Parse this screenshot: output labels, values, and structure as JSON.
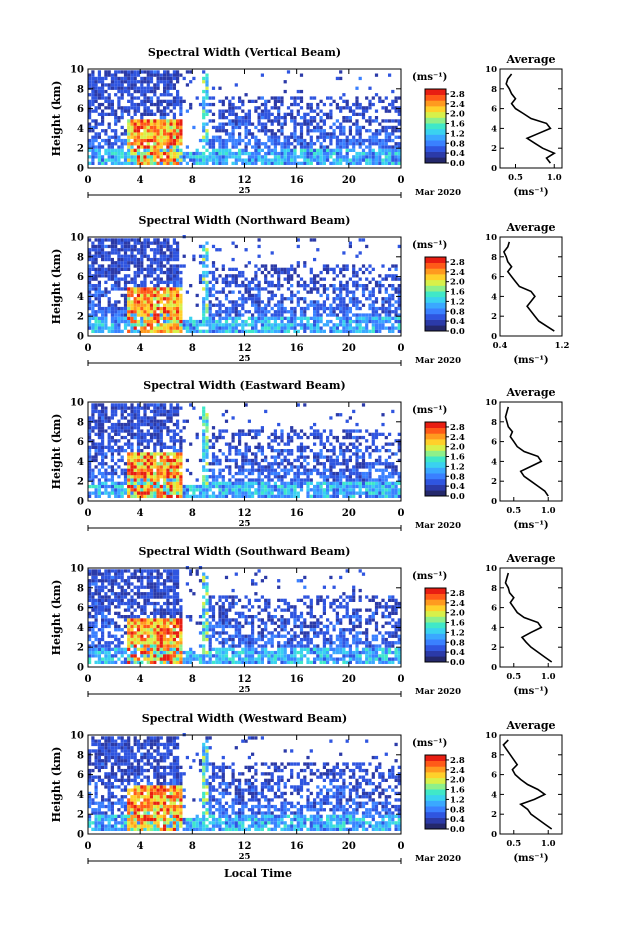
{
  "figure": {
    "x_title": "Local Time",
    "date_label": "Mar 2020",
    "day_label": "25",
    "unit_label": "(ms⁻¹)",
    "avg_title": "Average",
    "avg_xlabel": "(ms⁻¹)",
    "y_label": "Height (km)",
    "colorbar_ticks": [
      "0.0",
      "0.4",
      "0.8",
      "1.2",
      "1.6",
      "2.0",
      "2.4",
      "2.8"
    ],
    "colors": [
      "#24286b",
      "#2b3aa8",
      "#2f55e0",
      "#3a80ff",
      "#3aa8ff",
      "#3ad2f0",
      "#40e8c8",
      "#8ef08a",
      "#d8f04a",
      "#ffd02a",
      "#ff9a1f",
      "#ff5a18",
      "#e81e12"
    ]
  },
  "chart_data": [
    {
      "type": "heatmap",
      "title": "Spectral Width (Vertical Beam)",
      "xlabel": "Local Time",
      "ylabel": "Height (km)",
      "xlim": [
        0,
        24
      ],
      "ylim": [
        0,
        10
      ],
      "x_ticks": [
        "0",
        "4",
        "8",
        "12",
        "16",
        "20",
        "0"
      ],
      "y_ticks": [
        "0",
        "2",
        "4",
        "6",
        "8",
        "10"
      ],
      "colorbar": {
        "label": "(ms⁻¹)",
        "range": [
          0.0,
          3.0
        ]
      },
      "avg_profile": {
        "title": "Average",
        "xlabel": "(ms⁻¹)",
        "xlim": [
          0.3,
          1.1
        ],
        "x_ticks": [
          "0.5",
          "1.0"
        ],
        "heights": [
          0.5,
          1,
          1.5,
          2,
          2.5,
          3,
          3.5,
          4,
          4.5,
          5,
          5.5,
          6,
          6.5,
          7,
          7.5,
          8,
          8.5,
          9,
          9.5
        ],
        "values": [
          0.95,
          0.9,
          1.0,
          0.85,
          0.75,
          0.65,
          0.8,
          0.95,
          0.9,
          0.7,
          0.6,
          0.5,
          0.45,
          0.5,
          0.45,
          0.42,
          0.38,
          0.4,
          0.45
        ]
      }
    },
    {
      "type": "heatmap",
      "title": "Spectral Width (Northward Beam)",
      "xlabel": "Local Time",
      "ylabel": "Height (km)",
      "xlim": [
        0,
        24
      ],
      "ylim": [
        0,
        10
      ],
      "x_ticks": [
        "0",
        "4",
        "8",
        "12",
        "16",
        "20",
        "0"
      ],
      "y_ticks": [
        "0",
        "2",
        "4",
        "6",
        "8",
        "10"
      ],
      "colorbar": {
        "label": "(ms⁻¹)",
        "range": [
          0.0,
          3.0
        ]
      },
      "avg_profile": {
        "title": "Average",
        "xlabel": "(ms⁻¹)",
        "xlim": [
          0.4,
          1.2
        ],
        "x_ticks": [
          "0.4",
          "1.2"
        ],
        "heights": [
          0.5,
          1,
          1.5,
          2,
          2.5,
          3,
          3.5,
          4,
          4.5,
          5,
          5.5,
          6,
          6.5,
          7,
          7.5,
          8,
          8.5,
          9,
          9.5
        ],
        "values": [
          1.1,
          1.0,
          0.9,
          0.85,
          0.8,
          0.75,
          0.8,
          0.85,
          0.8,
          0.65,
          0.6,
          0.55,
          0.5,
          0.55,
          0.5,
          0.48,
          0.45,
          0.5,
          0.52
        ]
      }
    },
    {
      "type": "heatmap",
      "title": "Spectral Width (Eastward Beam)",
      "xlabel": "Local Time",
      "ylabel": "Height (km)",
      "xlim": [
        0,
        24
      ],
      "ylim": [
        0,
        10
      ],
      "x_ticks": [
        "0",
        "4",
        "8",
        "12",
        "16",
        "20",
        "0"
      ],
      "y_ticks": [
        "0",
        "2",
        "4",
        "6",
        "8",
        "10"
      ],
      "colorbar": {
        "label": "(ms⁻¹)",
        "range": [
          0.0,
          3.0
        ]
      },
      "avg_profile": {
        "title": "Average",
        "xlabel": "(ms⁻¹)",
        "xlim": [
          0.3,
          1.2
        ],
        "x_ticks": [
          "0.5",
          "1.0"
        ],
        "heights": [
          0.5,
          1,
          1.5,
          2,
          2.5,
          3,
          3.5,
          4,
          4.5,
          5,
          5.5,
          6,
          6.5,
          7,
          7.5,
          8,
          8.5,
          9,
          9.5
        ],
        "values": [
          1.0,
          0.95,
          0.85,
          0.75,
          0.65,
          0.6,
          0.75,
          0.9,
          0.85,
          0.65,
          0.55,
          0.5,
          0.45,
          0.48,
          0.42,
          0.4,
          0.38,
          0.4,
          0.42
        ]
      }
    },
    {
      "type": "heatmap",
      "title": "Spectral Width (Southward Beam)",
      "xlabel": "Local Time",
      "ylabel": "Height (km)",
      "xlim": [
        0,
        24
      ],
      "ylim": [
        0,
        10
      ],
      "x_ticks": [
        "0",
        "4",
        "8",
        "12",
        "16",
        "20",
        "0"
      ],
      "y_ticks": [
        "0",
        "2",
        "4",
        "6",
        "8",
        "10"
      ],
      "colorbar": {
        "label": "(ms⁻¹)",
        "range": [
          0.0,
          3.0
        ]
      },
      "avg_profile": {
        "title": "Average",
        "xlabel": "(ms⁻¹)",
        "xlim": [
          0.3,
          1.2
        ],
        "x_ticks": [
          "0.5",
          "1.0"
        ],
        "heights": [
          0.5,
          1,
          1.5,
          2,
          2.5,
          3,
          3.5,
          4,
          4.5,
          5,
          5.5,
          6,
          6.5,
          7,
          7.5,
          8,
          8.5,
          9,
          9.5
        ],
        "values": [
          1.05,
          0.95,
          0.85,
          0.75,
          0.68,
          0.62,
          0.75,
          0.9,
          0.85,
          0.65,
          0.55,
          0.5,
          0.45,
          0.5,
          0.44,
          0.42,
          0.38,
          0.4,
          0.42
        ]
      }
    },
    {
      "type": "heatmap",
      "title": "Spectral Width (Westward Beam)",
      "xlabel": "Local Time",
      "ylabel": "Height (km)",
      "xlim": [
        0,
        24
      ],
      "ylim": [
        0,
        10
      ],
      "x_ticks": [
        "0",
        "4",
        "8",
        "12",
        "16",
        "20",
        "0"
      ],
      "y_ticks": [
        "0",
        "2",
        "4",
        "6",
        "8",
        "10"
      ],
      "colorbar": {
        "label": "(ms⁻¹)",
        "range": [
          0.0,
          3.0
        ]
      },
      "avg_profile": {
        "title": "Average",
        "xlabel": "(ms⁻¹)",
        "xlim": [
          0.3,
          1.2
        ],
        "x_ticks": [
          "0.5",
          "1.0"
        ],
        "heights": [
          0.5,
          1,
          1.5,
          2,
          2.5,
          3,
          3.5,
          4,
          4.5,
          5,
          5.5,
          6,
          6.5,
          7,
          7.5,
          8,
          8.5,
          9,
          9.5
        ],
        "values": [
          1.05,
          0.95,
          0.85,
          0.75,
          0.7,
          0.6,
          0.8,
          0.95,
          0.85,
          0.7,
          0.6,
          0.52,
          0.48,
          0.55,
          0.5,
          0.45,
          0.4,
          0.35,
          0.42
        ]
      }
    }
  ]
}
